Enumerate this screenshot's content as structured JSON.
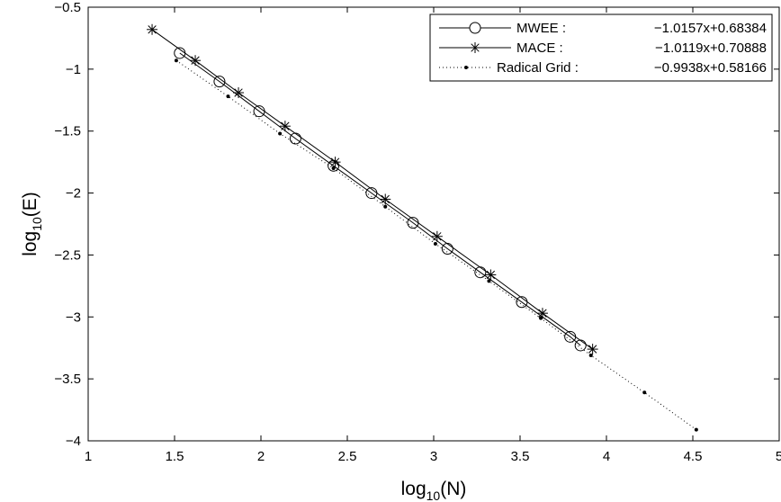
{
  "chart_data": {
    "type": "line",
    "title": "",
    "xlabel": {
      "main": "log",
      "sub": "10",
      "rest": "(N)"
    },
    "ylabel": {
      "main": "log",
      "sub": "10",
      "rest": "(E)"
    },
    "xlim": [
      1,
      5
    ],
    "ylim": [
      -4,
      -0.5
    ],
    "xticks": [
      1,
      1.5,
      2,
      2.5,
      3,
      3.5,
      4,
      4.5,
      5
    ],
    "xtick_labels": [
      "1",
      "1.5",
      "2",
      "2.5",
      "3",
      "3.5",
      "4",
      "4.5",
      "5"
    ],
    "yticks": [
      -4,
      -3.5,
      -3,
      -2.5,
      -2,
      -1.5,
      -1,
      -0.5
    ],
    "ytick_labels": [
      "−4",
      "−3.5",
      "−3",
      "−2.5",
      "−2",
      "−1.5",
      "−1",
      "−0.5"
    ],
    "grid": false,
    "legend_position": "top-right",
    "series": [
      {
        "name": "MWEE :",
        "fit": "−1.0157x+0.68384",
        "line_style": "solid",
        "marker": "circle",
        "x": [
          1.53,
          1.76,
          1.99,
          2.2,
          2.42,
          2.64,
          2.88,
          3.08,
          3.27,
          3.51,
          3.79,
          3.85
        ],
        "y": [
          -0.87,
          -1.1,
          -1.34,
          -1.56,
          -1.78,
          -2.0,
          -2.24,
          -2.45,
          -2.64,
          -2.88,
          -3.16,
          -3.23
        ]
      },
      {
        "name": "MACE :",
        "fit": "−1.0119x+0.70888",
        "line_style": "solid",
        "marker": "star",
        "x": [
          1.37,
          1.62,
          1.87,
          2.14,
          2.43,
          2.72,
          3.02,
          3.33,
          3.63,
          3.92
        ],
        "y": [
          -0.68,
          -0.93,
          -1.19,
          -1.46,
          -1.75,
          -2.05,
          -2.35,
          -2.66,
          -2.97,
          -3.26
        ]
      },
      {
        "name": "Radical Grid :",
        "fit": "−0.9938x+0.58166",
        "line_style": "dotted",
        "marker": "dot",
        "x": [
          1.51,
          1.81,
          2.11,
          2.42,
          2.72,
          3.01,
          3.32,
          3.62,
          3.91,
          4.22,
          4.52
        ],
        "y": [
          -0.93,
          -1.22,
          -1.52,
          -1.8,
          -2.11,
          -2.41,
          -2.71,
          -3.01,
          -3.31,
          -3.61,
          -3.91
        ]
      }
    ]
  }
}
